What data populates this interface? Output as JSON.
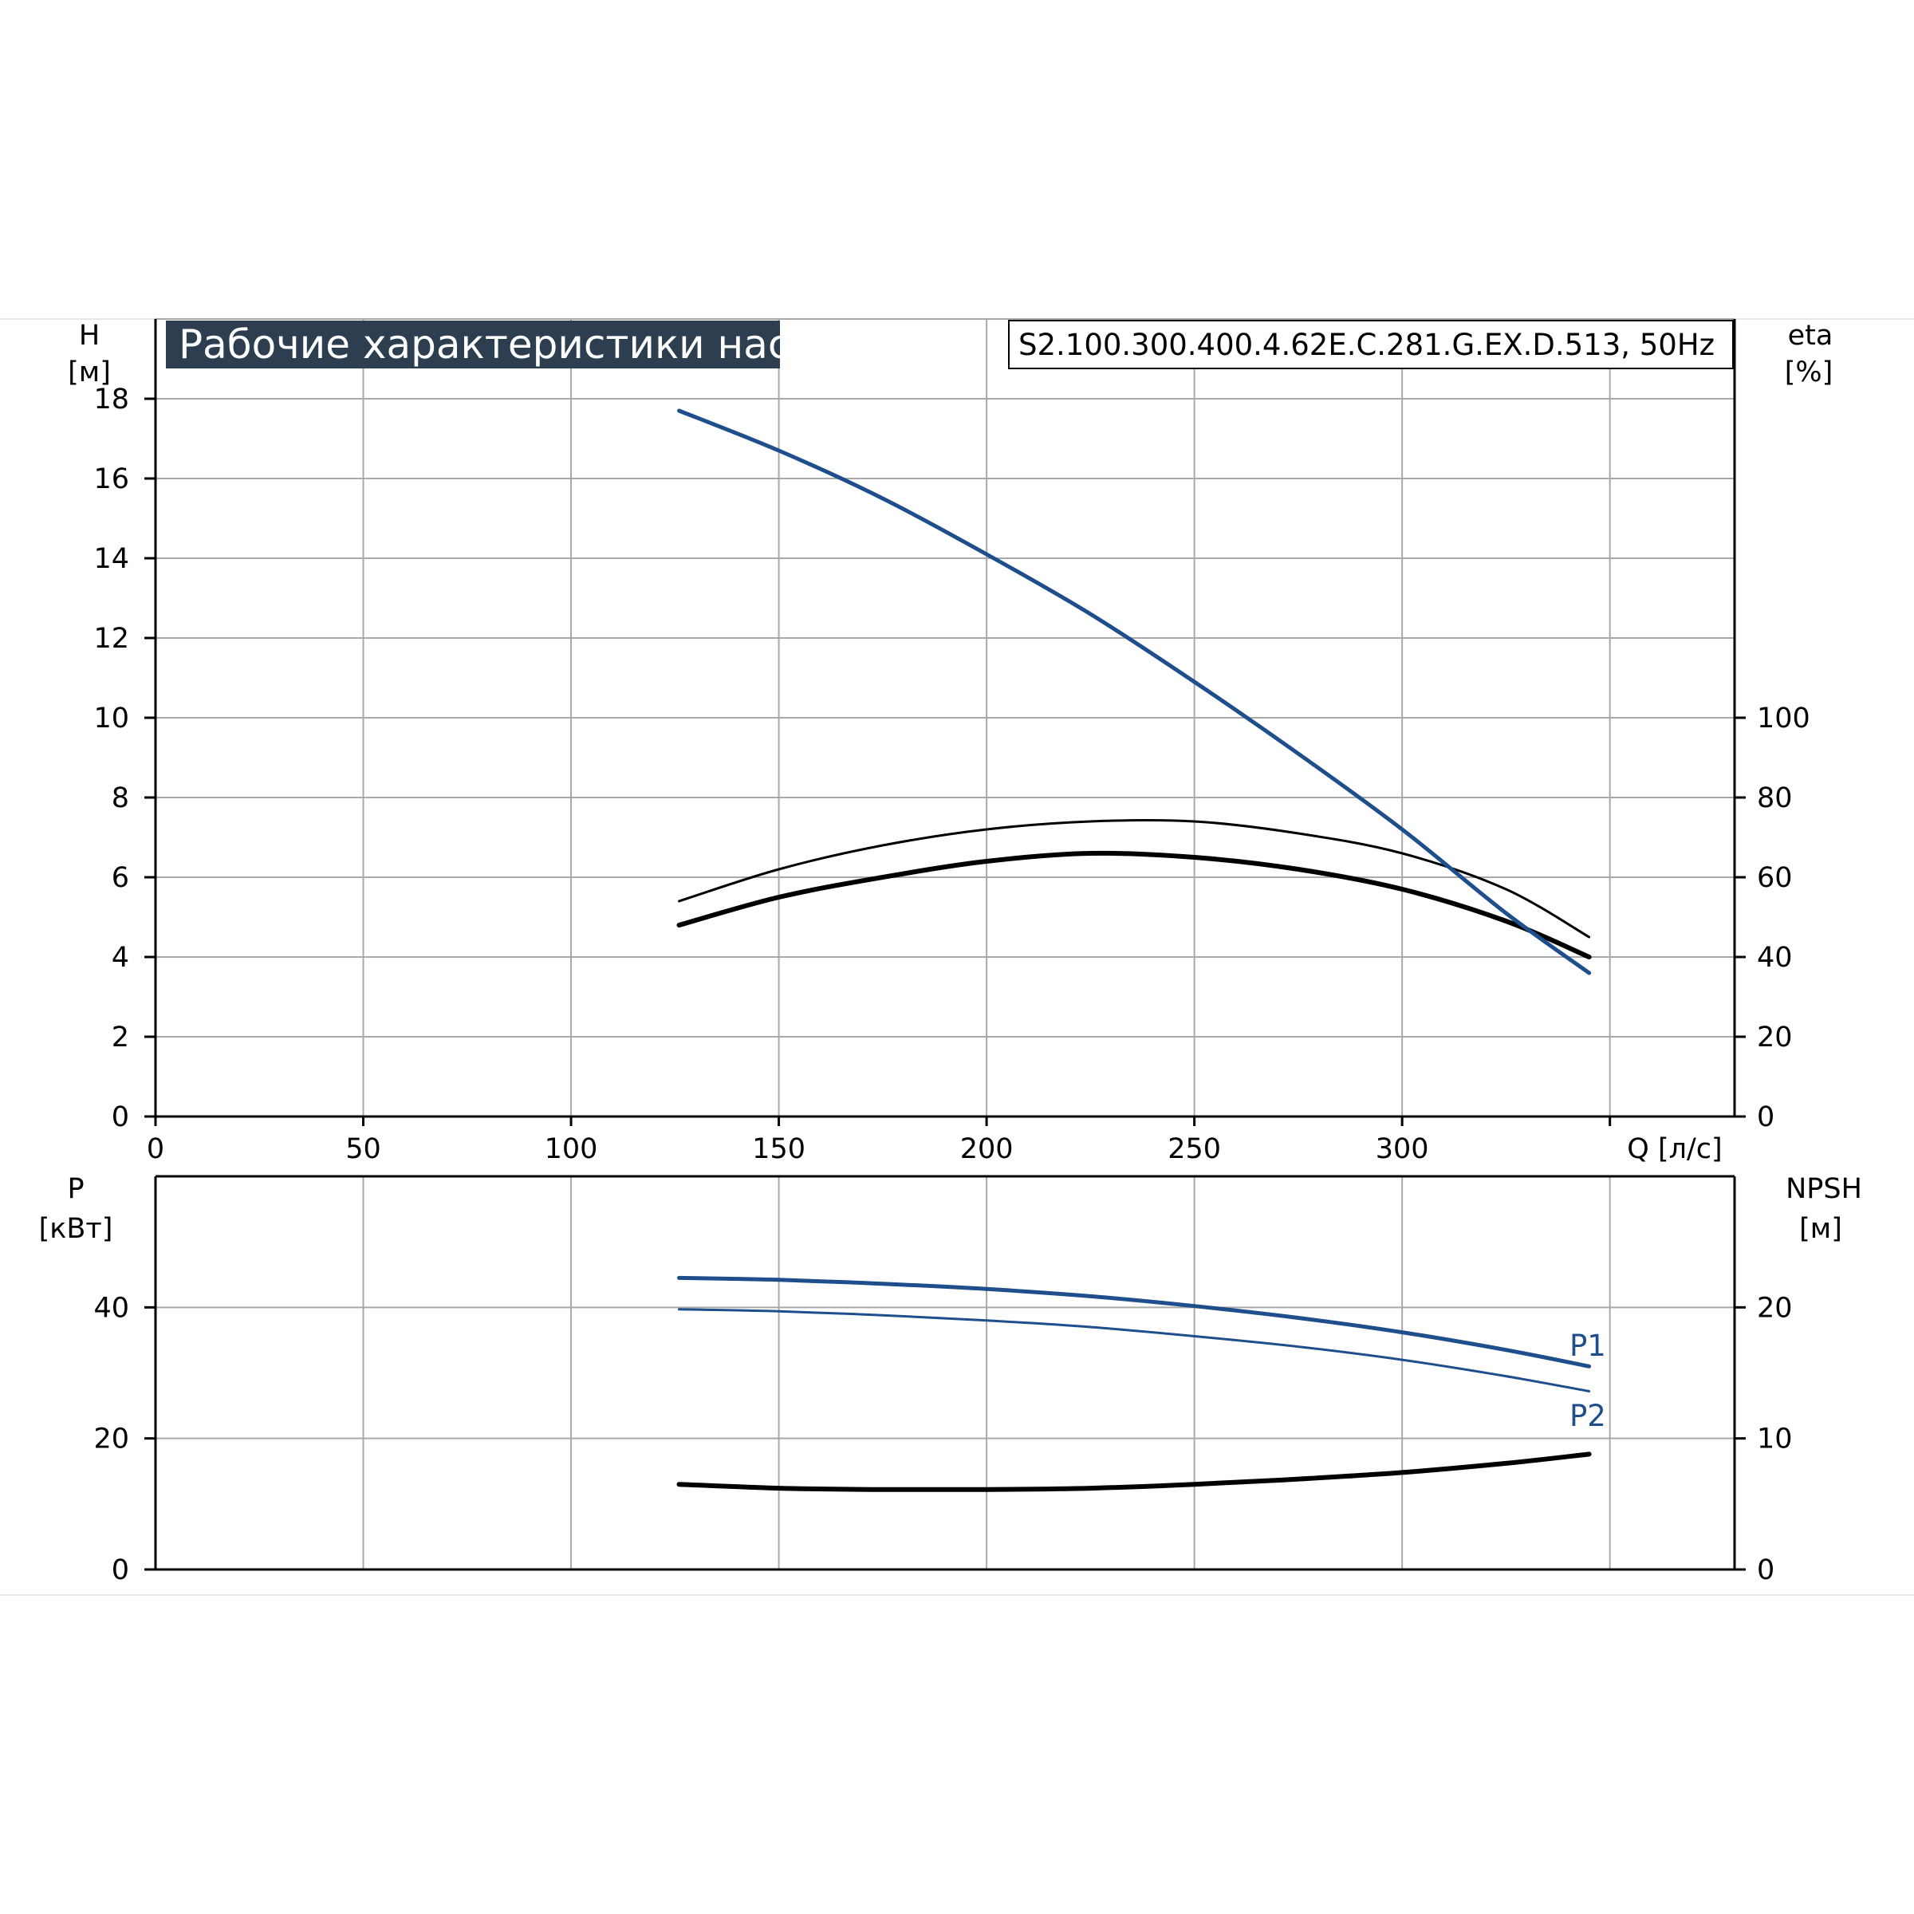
{
  "header": {
    "title": "Рабочие характеристики насоса",
    "model": "S2.100.300.400.4.62E.C.281.G.EX.D.513, 50Hz"
  },
  "colors": {
    "title_bg": "#2d3e50",
    "head_curve": "#1f4e8c",
    "power_curve": "#1f4e8c",
    "efficiency_curve": "#000000",
    "npsh_curve": "#000000",
    "grid": "#a9a9a9"
  },
  "chart_data": [
    {
      "type": "line",
      "panel": "upper",
      "xlabel": "Q [л/с]",
      "ylabel_line1": "H",
      "ylabel_line2": "[м]",
      "y2label_line1": "eta",
      "y2label_line2": "[%]",
      "xlim": [
        0,
        380
      ],
      "ylim": [
        0,
        20
      ],
      "y2lim": [
        0,
        100
      ],
      "xticks": [
        0,
        50,
        100,
        150,
        200,
        250,
        300
      ],
      "yticks": [
        0,
        2,
        4,
        6,
        8,
        10,
        12,
        14,
        16,
        18
      ],
      "y2ticks": [
        0,
        20,
        40,
        60,
        80,
        100
      ],
      "grid": true,
      "series": [
        {
          "axis": "left",
          "color": "#1f4e8c",
          "x": [
            126,
            150,
            175,
            200,
            225,
            250,
            275,
            300,
            325,
            345
          ],
          "values": [
            17.7,
            16.7,
            15.5,
            14.1,
            12.6,
            10.9,
            9.1,
            7.2,
            5.1,
            3.6
          ]
        },
        {
          "axis": "right",
          "color": "#000000",
          "width": "thin",
          "x": [
            126,
            150,
            175,
            200,
            225,
            250,
            275,
            300,
            325,
            345
          ],
          "values": [
            54,
            62,
            68,
            72,
            74,
            74,
            71,
            66,
            57,
            45
          ]
        },
        {
          "axis": "right",
          "color": "#000000",
          "width": "thick",
          "x": [
            126,
            150,
            175,
            200,
            225,
            250,
            275,
            300,
            325,
            345
          ],
          "values": [
            48,
            55,
            60,
            64,
            66,
            65,
            62,
            57,
            49,
            40
          ]
        }
      ]
    },
    {
      "type": "line",
      "panel": "lower",
      "ylabel_line1": "P",
      "ylabel_line2": "[кВт]",
      "y2label_line1": "NPSH",
      "y2label_line2": "[м]",
      "xlim": [
        0,
        380
      ],
      "ylim": [
        0,
        60
      ],
      "y2lim": [
        0,
        30
      ],
      "yticks": [
        0,
        20,
        40
      ],
      "y2ticks": [
        0,
        10,
        20
      ],
      "grid": true,
      "series": [
        {
          "name": "P1",
          "axis": "left",
          "color": "#1f4e8c",
          "width": "thick",
          "x": [
            126,
            150,
            175,
            200,
            225,
            250,
            275,
            300,
            325,
            345
          ],
          "values": [
            44.5,
            44.2,
            43.6,
            42.8,
            41.7,
            40.2,
            38.4,
            36.2,
            33.5,
            31.0
          ]
        },
        {
          "name": "P2",
          "axis": "left",
          "color": "#1f4e8c",
          "width": "thin",
          "x": [
            126,
            150,
            175,
            200,
            225,
            250,
            275,
            300,
            325,
            345
          ],
          "values": [
            39.7,
            39.4,
            38.8,
            38.0,
            37.0,
            35.6,
            34.0,
            32.0,
            29.5,
            27.2
          ]
        },
        {
          "axis": "right",
          "color": "#000000",
          "width": "thick",
          "x": [
            126,
            150,
            175,
            200,
            225,
            250,
            275,
            300,
            325,
            345
          ],
          "values": [
            6.5,
            6.2,
            6.1,
            6.1,
            6.2,
            6.5,
            6.9,
            7.4,
            8.1,
            8.8
          ]
        }
      ]
    }
  ]
}
